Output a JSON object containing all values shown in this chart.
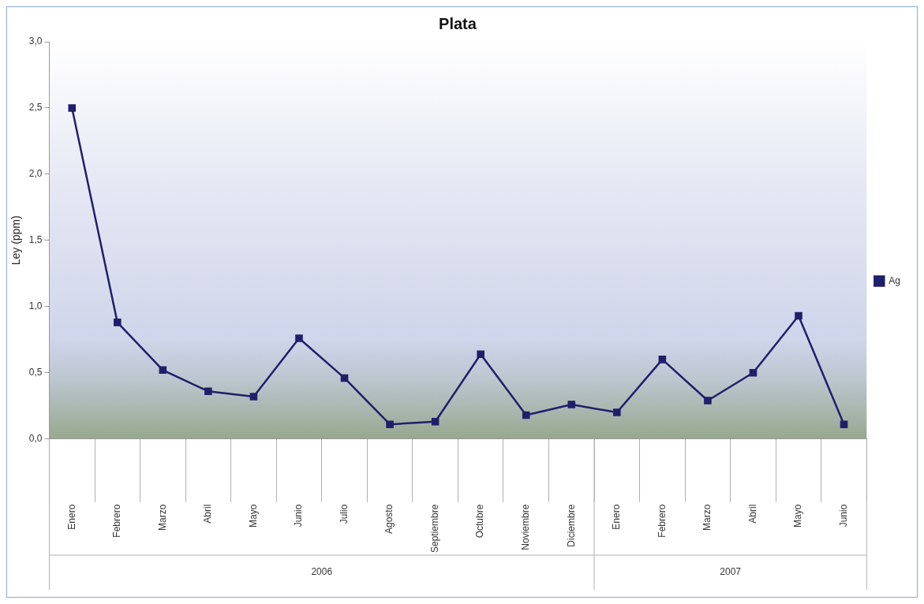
{
  "chart_data": {
    "type": "line",
    "title": "Plata",
    "ylabel": "Ley (ppm)",
    "categories": [
      "Enero",
      "Febrero",
      "Marzo",
      "Abril",
      "Mayo",
      "Junio",
      "Julio",
      "Agosto",
      "Septiembre",
      "Octubre",
      "Noviembre",
      "Diciembre",
      "Enero",
      "Febrero",
      "Marzo",
      "Abril",
      "Mayo",
      "Junio"
    ],
    "series": [
      {
        "name": "Ag",
        "color": "#1f1f6b",
        "values": [
          2.5,
          0.88,
          0.52,
          0.36,
          0.32,
          0.76,
          0.46,
          0.11,
          0.13,
          0.64,
          0.18,
          0.26,
          0.2,
          0.6,
          0.29,
          0.5,
          0.93,
          0.11
        ]
      }
    ],
    "annotations": [
      "2006",
      "2007"
    ],
    "ylim": [
      0,
      3
    ],
    "yticks": [
      {
        "value": 0,
        "label": "0,0"
      },
      {
        "value": 0.5,
        "label": "0,5"
      },
      {
        "value": 1,
        "label": "1,0"
      },
      {
        "value": 1.5,
        "label": "1,5"
      },
      {
        "value": 2,
        "label": "2,0"
      },
      {
        "value": 2.5,
        "label": "2,5"
      },
      {
        "value": 3,
        "label": "3,0"
      }
    ],
    "grid": false,
    "legend": "right",
    "marker": "square",
    "line_style": "solid"
  }
}
